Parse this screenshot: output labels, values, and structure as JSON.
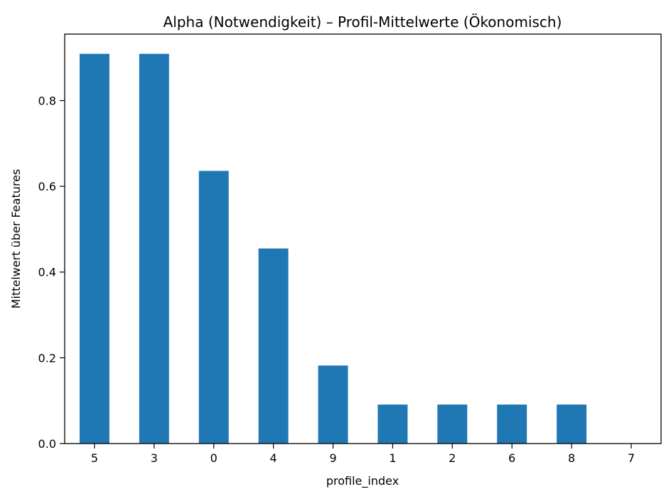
{
  "chart_data": {
    "type": "bar",
    "title": "Alpha (Notwendigkeit) – Profil-Mittelwerte (Ökonomisch)",
    "xlabel": "profile_index",
    "ylabel": "Mittelwert über Features",
    "categories": [
      "5",
      "3",
      "0",
      "4",
      "9",
      "1",
      "2",
      "6",
      "8",
      "7"
    ],
    "values": [
      0.909,
      0.909,
      0.636,
      0.455,
      0.182,
      0.091,
      0.091,
      0.091,
      0.091,
      0.0
    ],
    "ylim": [
      0,
      0.955
    ],
    "yticks": [
      0.0,
      0.2,
      0.4,
      0.6,
      0.8
    ],
    "ytick_labels": [
      "0.0",
      "0.2",
      "0.4",
      "0.6",
      "0.8"
    ],
    "bar_color": "#1f77b4",
    "grid": false,
    "legend": "none"
  }
}
